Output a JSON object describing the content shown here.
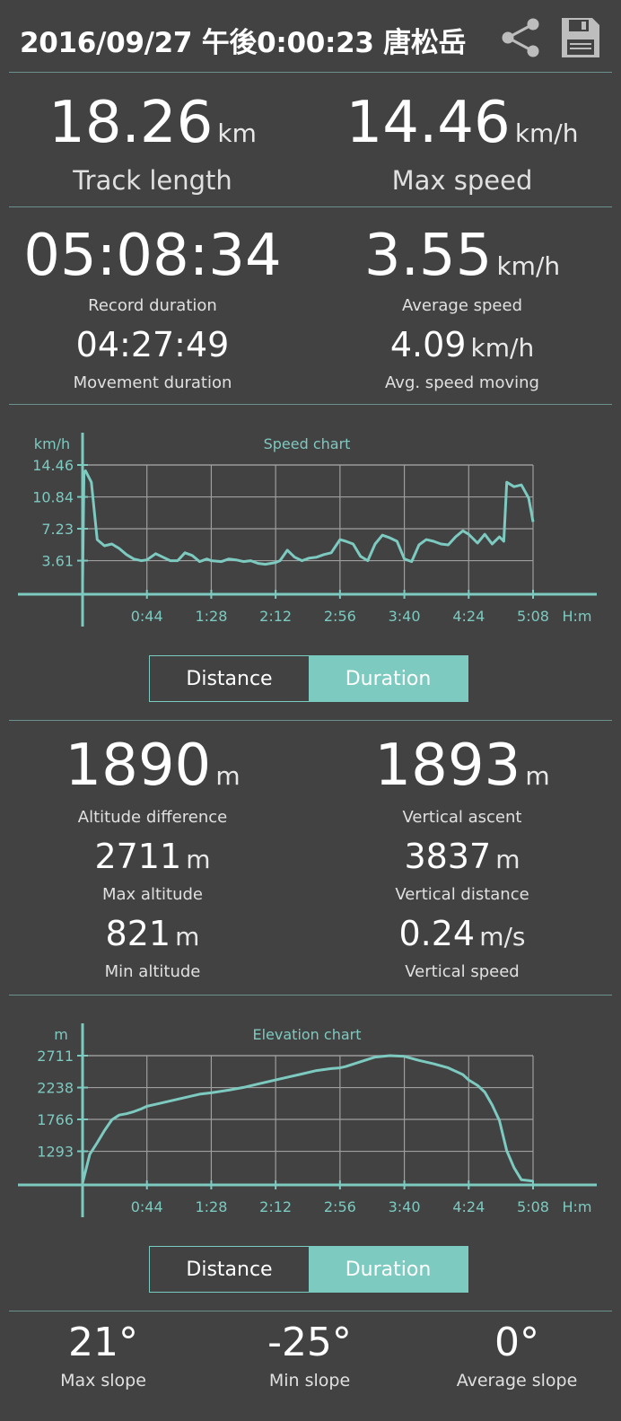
{
  "header": {
    "title": "2016/09/27 午後0:00:23 唐松岳",
    "share_icon": "share-icon",
    "save_icon": "save-icon"
  },
  "summary": {
    "track_length": {
      "value": "18.26",
      "unit": "km",
      "label": "Track length"
    },
    "max_speed": {
      "value": "14.46",
      "unit": "km/h",
      "label": "Max speed"
    },
    "record_duration": {
      "value": "05:08:34",
      "label": "Record duration"
    },
    "average_speed": {
      "value": "3.55",
      "unit": "km/h",
      "label": "Average speed"
    },
    "movement_duration": {
      "value": "04:27:49",
      "label": "Movement duration"
    },
    "avg_speed_moving": {
      "value": "4.09",
      "unit": "km/h",
      "label": "Avg. speed moving"
    }
  },
  "speed_chart": {
    "title": "Speed chart",
    "ylabel": "km/h",
    "xunit": "H:m",
    "y_ticks": [
      "14.46",
      "10.84",
      "7.23",
      "3.61"
    ],
    "x_ticks": [
      "0:44",
      "1:28",
      "2:12",
      "2:56",
      "3:40",
      "4:24",
      "5:08"
    ],
    "toggle": {
      "left": "Distance",
      "right": "Duration",
      "selected": "Duration"
    }
  },
  "altitude": {
    "altitude_difference": {
      "value": "1890",
      "unit": "m",
      "label": "Altitude difference"
    },
    "vertical_ascent": {
      "value": "1893",
      "unit": "m",
      "label": "Vertical ascent"
    },
    "max_altitude": {
      "value": "2711",
      "unit": "m",
      "label": "Max altitude"
    },
    "vertical_distance": {
      "value": "3837",
      "unit": "m",
      "label": "Vertical distance"
    },
    "min_altitude": {
      "value": "821",
      "unit": "m",
      "label": "Min altitude"
    },
    "vertical_speed": {
      "value": "0.24",
      "unit": "m/s",
      "label": "Vertical speed"
    }
  },
  "elevation_chart": {
    "title": "Elevation chart",
    "ylabel": "m",
    "xunit": "H:m",
    "y_ticks": [
      "2711",
      "2238",
      "1766",
      "1293"
    ],
    "x_ticks": [
      "0:44",
      "1:28",
      "2:12",
      "2:56",
      "3:40",
      "4:24",
      "5:08"
    ],
    "toggle": {
      "left": "Distance",
      "right": "Duration",
      "selected": "Duration"
    }
  },
  "slope": {
    "max_slope": {
      "value": "21°",
      "label": "Max slope"
    },
    "min_slope": {
      "value": "-25°",
      "label": "Min slope"
    },
    "average_slope": {
      "value": "0°",
      "label": "Average slope"
    }
  },
  "colors": {
    "background": "#424242",
    "accent": "#7ccac0",
    "grid": "#9e9e9e",
    "text": "#ffffff"
  },
  "chart_data": [
    {
      "type": "line",
      "title": "Speed chart",
      "ylabel": "km/h",
      "xlabel": "H:m",
      "ylim": [
        0,
        14.46
      ],
      "xlim": [
        "0:00",
        "5:08"
      ],
      "grid": true,
      "series": [
        {
          "x": [
            "0:00",
            "0:01",
            "0:02",
            "0:06",
            "0:10",
            "0:15",
            "0:20",
            "0:25",
            "0:30",
            "0:35",
            "0:40",
            "0:44",
            "0:50",
            "0:55",
            "1:00",
            "1:05",
            "1:10",
            "1:15",
            "1:20",
            "1:25",
            "1:28",
            "1:35",
            "1:40",
            "1:45",
            "1:50",
            "1:55",
            "2:00",
            "2:05",
            "2:12",
            "2:15",
            "2:20",
            "2:25",
            "2:30",
            "2:35",
            "2:40",
            "2:45",
            "2:50",
            "2:56",
            "3:00",
            "3:05",
            "3:10",
            "3:15",
            "3:20",
            "3:25",
            "3:30",
            "3:35",
            "3:40",
            "3:45",
            "3:50",
            "3:55",
            "4:00",
            "4:05",
            "4:10",
            "4:15",
            "4:20",
            "4:24",
            "4:30",
            "4:35",
            "4:40",
            "4:45",
            "4:48",
            "4:50",
            "4:55",
            "5:00",
            "5:05",
            "5:08"
          ],
          "values": [
            1.0,
            13.6,
            13.8,
            12.5,
            6.0,
            5.3,
            5.5,
            5.0,
            4.3,
            3.8,
            3.6,
            3.7,
            4.4,
            4.0,
            3.6,
            3.6,
            4.5,
            4.2,
            3.5,
            3.8,
            3.6,
            3.5,
            3.8,
            3.7,
            3.5,
            3.6,
            3.3,
            3.2,
            3.4,
            3.6,
            4.8,
            4.0,
            3.6,
            3.9,
            4.0,
            4.3,
            4.5,
            6.0,
            5.8,
            5.5,
            4.1,
            3.6,
            5.5,
            6.5,
            6.2,
            5.8,
            3.8,
            3.5,
            5.4,
            6.0,
            5.8,
            5.5,
            5.4,
            6.3,
            7.0,
            6.6,
            5.6,
            6.6,
            5.5,
            6.3,
            5.8,
            12.5,
            12.0,
            12.2,
            10.7,
            8.0
          ]
        }
      ]
    },
    {
      "type": "line",
      "title": "Elevation chart",
      "ylabel": "m",
      "xlabel": "H:m",
      "ylim": [
        821,
        2711
      ],
      "xlim": [
        "0:00",
        "5:08"
      ],
      "grid": true,
      "series": [
        {
          "x": [
            "0:00",
            "0:05",
            "0:10",
            "0:15",
            "0:20",
            "0:25",
            "0:30",
            "0:35",
            "0:40",
            "0:44",
            "0:50",
            "1:00",
            "1:10",
            "1:20",
            "1:28",
            "1:40",
            "1:50",
            "2:00",
            "2:12",
            "2:20",
            "2:30",
            "2:40",
            "2:50",
            "2:56",
            "3:00",
            "3:10",
            "3:20",
            "3:30",
            "3:40",
            "3:50",
            "4:00",
            "4:10",
            "4:20",
            "4:24",
            "4:30",
            "4:35",
            "4:40",
            "4:45",
            "4:50",
            "4:55",
            "5:00",
            "5:08"
          ],
          "values": [
            821,
            1250,
            1420,
            1600,
            1760,
            1830,
            1850,
            1880,
            1920,
            1960,
            1990,
            2040,
            2090,
            2140,
            2160,
            2200,
            2240,
            2290,
            2350,
            2390,
            2440,
            2490,
            2520,
            2530,
            2550,
            2620,
            2690,
            2711,
            2700,
            2640,
            2590,
            2530,
            2430,
            2350,
            2270,
            2170,
            1980,
            1750,
            1300,
            1050,
            870,
            850
          ]
        }
      ]
    }
  ]
}
